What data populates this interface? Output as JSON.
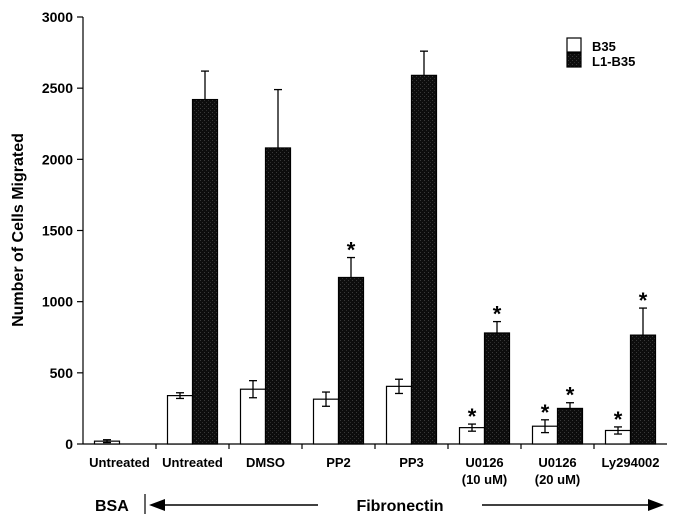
{
  "chart_data": {
    "type": "bar",
    "ylabel": "Number of Cells Migrated",
    "ylim": [
      0,
      3000
    ],
    "yticks": [
      0,
      500,
      1000,
      1500,
      2000,
      2500,
      3000
    ],
    "grid": false,
    "legend_position": "top-right",
    "categories": [
      {
        "line1": "Untreated",
        "line2": ""
      },
      {
        "line1": "Untreated",
        "line2": ""
      },
      {
        "line1": "DMSO",
        "line2": ""
      },
      {
        "line1": "PP2",
        "line2": ""
      },
      {
        "line1": "PP3",
        "line2": ""
      },
      {
        "line1": "U0126",
        "line2": "(10 uM)"
      },
      {
        "line1": "U0126",
        "line2": "(20 uM)"
      },
      {
        "line1": "Ly294002",
        "line2": ""
      }
    ],
    "series": [
      {
        "name": "B35",
        "color": "#ffffff",
        "values": [
          20,
          340,
          385,
          315,
          405,
          115,
          125,
          95
        ],
        "errors": [
          10,
          20,
          60,
          50,
          50,
          25,
          45,
          25
        ],
        "significant": [
          false,
          false,
          false,
          false,
          false,
          true,
          true,
          true
        ]
      },
      {
        "name": "L1-B35",
        "color": "#111111",
        "values": [
          null,
          2420,
          2080,
          1170,
          2590,
          780,
          250,
          765
        ],
        "errors": [
          null,
          200,
          410,
          140,
          170,
          80,
          40,
          190
        ],
        "significant": [
          false,
          false,
          false,
          true,
          false,
          true,
          true,
          true
        ]
      }
    ],
    "significance_marker": "*",
    "group_labels": {
      "bsa": "BSA",
      "fibronectin": "Fibronectin"
    }
  }
}
